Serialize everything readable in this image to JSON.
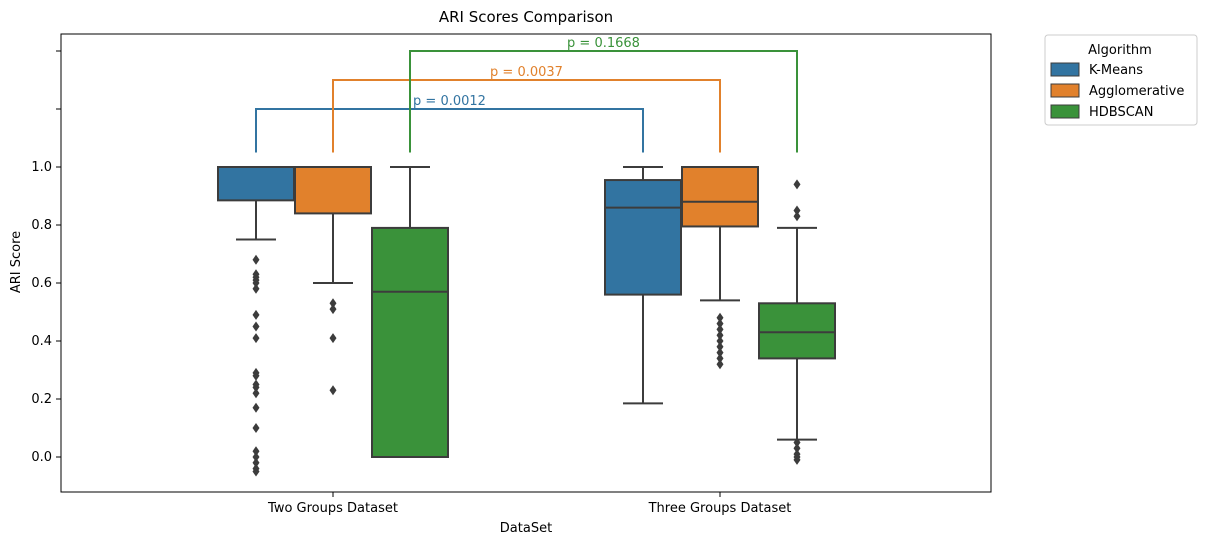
{
  "chart_data": {
    "type": "box",
    "title": "ARI Scores Comparison",
    "xlabel": "DataSet",
    "ylabel": "ARI Score",
    "ylim": [
      -0.12,
      1.51
    ],
    "yticks": [
      "0.0",
      "0.2",
      "0.4",
      "0.6",
      "0.8",
      "1.0"
    ],
    "categories": [
      "Two Groups Dataset",
      "Three Groups Dataset"
    ],
    "legend": {
      "title": "Algorithm",
      "placement": "outside-top-right"
    },
    "series": [
      {
        "name": "K-Means",
        "color": "#3274a1",
        "boxes": [
          {
            "q1": 0.885,
            "median": 1.0,
            "q3": 1.0,
            "whisker_low": 0.75,
            "whisker_high": 1.0,
            "outliers": [
              0.68,
              0.63,
              0.62,
              0.61,
              0.6,
              0.58,
              0.49,
              0.45,
              0.41,
              0.29,
              0.28,
              0.25,
              0.24,
              0.22,
              0.17,
              0.1,
              0.02,
              0.0,
              -0.02,
              -0.04,
              -0.05
            ]
          },
          {
            "q1": 0.56,
            "median": 0.86,
            "q3": 0.955,
            "whisker_low": 0.185,
            "whisker_high": 1.0,
            "outliers": []
          }
        ]
      },
      {
        "name": "Agglomerative",
        "color": "#e1812c",
        "boxes": [
          {
            "q1": 0.84,
            "median": 1.0,
            "q3": 1.0,
            "whisker_low": 0.6,
            "whisker_high": 1.0,
            "outliers": [
              0.53,
              0.51,
              0.41,
              0.23
            ]
          },
          {
            "q1": 0.795,
            "median": 0.88,
            "q3": 1.0,
            "whisker_low": 0.54,
            "whisker_high": 1.0,
            "outliers": [
              0.48,
              0.46,
              0.44,
              0.42,
              0.4,
              0.38,
              0.36,
              0.34,
              0.32
            ]
          }
        ]
      },
      {
        "name": "HDBSCAN",
        "color": "#3a923a",
        "boxes": [
          {
            "q1": 0.0,
            "median": 0.57,
            "q3": 0.79,
            "whisker_low": 0.0,
            "whisker_high": 1.0,
            "outliers": []
          },
          {
            "q1": 0.34,
            "median": 0.43,
            "q3": 0.53,
            "whisker_low": 0.06,
            "whisker_high": 0.79,
            "outliers": [
              0.94,
              0.85,
              0.83,
              0.05,
              0.03,
              0.01,
              0.0,
              -0.01
            ]
          }
        ]
      }
    ],
    "annotations": [
      {
        "series": "K-Means",
        "text": "p = 0.0012",
        "level": 1.2
      },
      {
        "series": "Agglomerative",
        "text": "p = 0.0037",
        "level": 1.3
      },
      {
        "series": "HDBSCAN",
        "text": "p = 0.1668",
        "level": 1.4
      }
    ]
  }
}
